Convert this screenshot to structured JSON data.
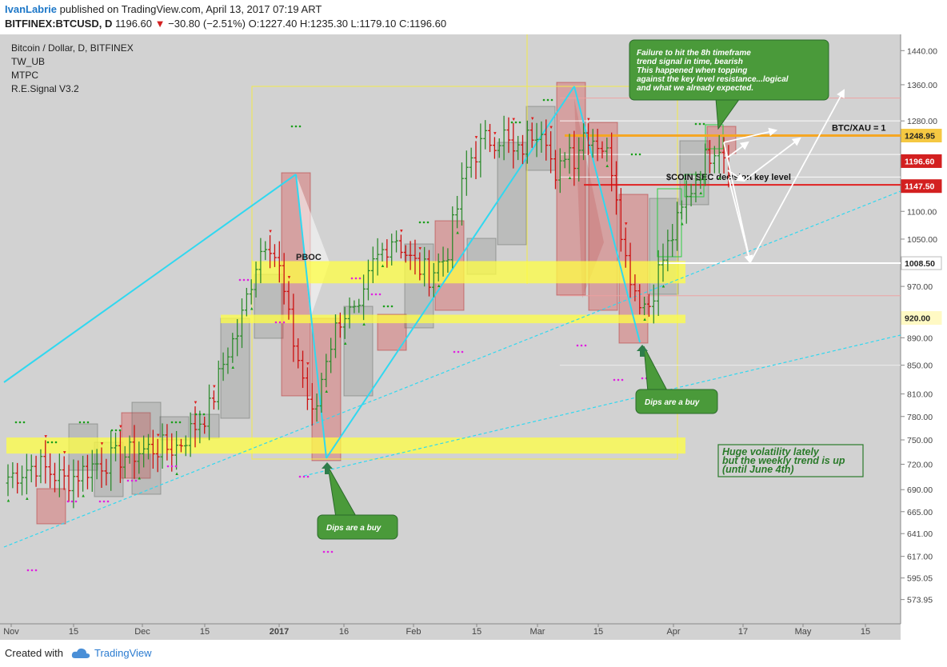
{
  "header": {
    "author": "IvanLabrie",
    "published": "published on TradingView.com, April 13, 2017 07:19 ART",
    "symbol": "BITFINEX:BTCUSD, D",
    "price": "1196.60",
    "change": "−30.80 (−2.51%)",
    "ohlc": "O:1227.40 H:1235.30 L:1179.10 C:1196.60",
    "change_color": "#d32020"
  },
  "legend": {
    "title": "Bitcoin / Dollar, D, BITFINEX",
    "indicators": [
      "TW_UB",
      "MTPC",
      "R.E.Signal V3.2"
    ]
  },
  "footer": {
    "created_with": "Created with",
    "brand": "TradingView"
  },
  "chart_data": {
    "type": "candlestick",
    "x_ticks": [
      "Nov",
      "15",
      "Dec",
      "15",
      "2017",
      "16",
      "Feb",
      "15",
      "Mar",
      "15",
      "Apr",
      "17",
      "May",
      "15"
    ],
    "y_ticks": [
      573.95,
      595.05,
      617.0,
      641.0,
      665.0,
      690.0,
      720.0,
      750.0,
      780.0,
      810.0,
      850.0,
      890.0,
      920.0,
      970.0,
      1050.0,
      1100.0,
      1150.0,
      1280.0,
      1360.0,
      1440.0
    ],
    "y_scale": "log",
    "ylim": [
      560,
      1460
    ],
    "price_tags": [
      {
        "value": 1248.95,
        "text": "1248.95",
        "bg": "#f5c842",
        "fg": "#222222"
      },
      {
        "value": 1196.6,
        "text": "1196.60",
        "bg": "#d32020",
        "fg": "#ffffff"
      },
      {
        "value": 1147.5,
        "text": "1147.50",
        "bg": "#d32020",
        "fg": "#ffffff"
      },
      {
        "value": 1008.5,
        "text": "1008.50",
        "bg": "#ffffff",
        "fg": "#222222"
      },
      {
        "value": 920.0,
        "text": "920.00",
        "bg": "#fff9c4",
        "fg": "#222222"
      }
    ],
    "levels": [
      {
        "value": 1248.95,
        "color": "#f5a623",
        "label": "BTC/XAU = 1"
      },
      {
        "value": 1150.0,
        "color": "#e02020",
        "label": "$COIN SEC decision key level"
      },
      {
        "value": 1008.5,
        "color": "#ffffff",
        "label": ""
      }
    ],
    "support_zones": [
      {
        "low": 975,
        "high": 1012
      },
      {
        "low": 912,
        "high": 925
      },
      {
        "low": 733,
        "high": 753
      }
    ],
    "candles_count": 155,
    "trend_bias": "up",
    "annotations": [
      {
        "id": "failure-note",
        "lines": [
          "Failure to hit the 8h timeframe",
          "trend signal in time, bearish",
          "This happened when topping",
          "against the key level resistance...logical",
          "and what we already expected."
        ]
      },
      {
        "id": "dips-buy-1",
        "lines": [
          "Dips are a buy"
        ]
      },
      {
        "id": "dips-buy-2",
        "lines": [
          "Dips are a buy"
        ]
      },
      {
        "id": "volatility-note",
        "lines": [
          "Huge volatility lately",
          "but the weekly trend is up",
          "(until June 4th)"
        ]
      }
    ],
    "pboc_label": "PBOC",
    "colors": {
      "background": "#d2d2d2",
      "bull": "#2e8b2e",
      "bear": "#cc1111",
      "zone": "#ffff44",
      "trendline": "#30d8f0",
      "note_fill": "#4a9a3a"
    }
  }
}
